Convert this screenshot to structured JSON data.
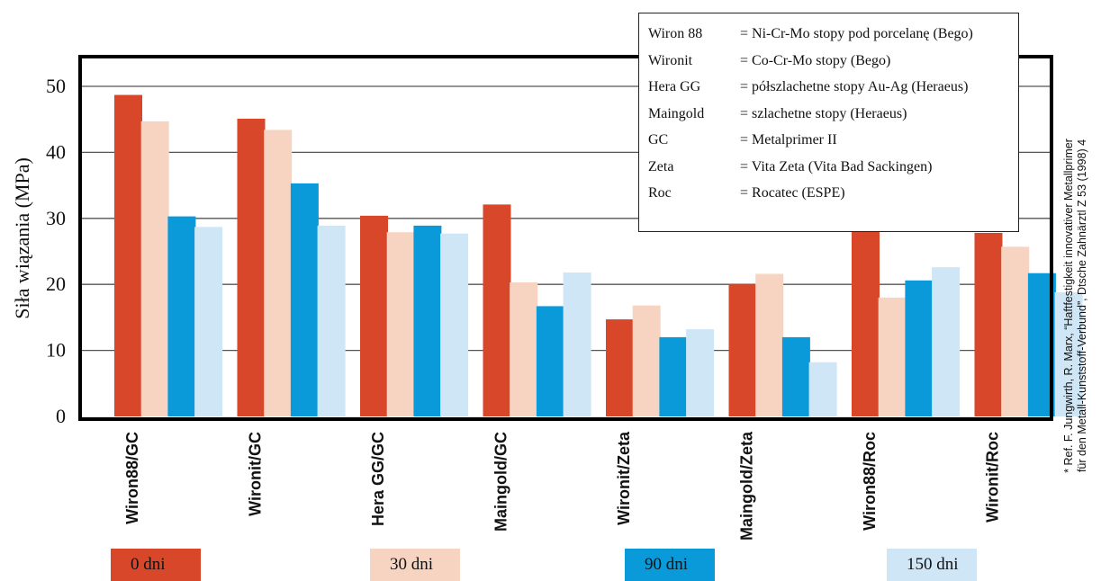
{
  "chart_data": {
    "type": "bar",
    "ylabel": "Siła wiązania (MPa)",
    "ylim": [
      0,
      54
    ],
    "yticks": [
      0,
      10,
      20,
      30,
      40,
      50
    ],
    "grid": true,
    "categories": [
      "Wiron88/GC",
      "Wironit/GC",
      "Hera GG/GC",
      "Maingold/GC",
      "Wironit/Zeta",
      "Maingold/Zeta",
      "Wiron88/Roc",
      "Wironit/Roc"
    ],
    "series": [
      {
        "name": "0 dni",
        "color": "#d9472b",
        "values": [
          48.7,
          45.1,
          30.4,
          32.1,
          14.7,
          20.0,
          28.1,
          27.8
        ]
      },
      {
        "name": "30 dni",
        "color": "#f7d4c2",
        "values": [
          44.7,
          43.4,
          27.9,
          20.3,
          16.8,
          21.6,
          18.0,
          25.7
        ]
      },
      {
        "name": "90 dni",
        "color": "#0b9ad9",
        "values": [
          30.3,
          35.3,
          28.9,
          16.7,
          12.0,
          12.0,
          20.6,
          21.7
        ]
      },
      {
        "name": "150 dni",
        "color": "#cfe6f6",
        "values": [
          28.7,
          28.9,
          27.7,
          21.8,
          13.2,
          8.2,
          22.6,
          18.8
        ]
      }
    ],
    "legend_placement": "bottom"
  },
  "legend_text": [
    {
      "key": "Wiron 88",
      "value": "= Ni-Cr-Mo stopy pod porcelanę (Bego)"
    },
    {
      "key": "Wironit",
      "value": "= Co-Cr-Mo stopy (Bego)"
    },
    {
      "key": "Hera GG",
      "value": "= półszlachetne stopy Au-Ag (Heraeus)"
    },
    {
      "key": "Maingold",
      "value": "= szlachetne stopy (Heraeus)"
    },
    {
      "key": "GC",
      "value": "= Metalprimer II"
    },
    {
      "key": "Zeta",
      "value": "= Vita Zeta (Vita Bad Sackingen)"
    },
    {
      "key": "Roc",
      "value": "= Rocatec (ESPE)"
    }
  ],
  "reference_note": {
    "line1": "* Ref. F. Jungwirth, R. Marx, “Haftfestigkeit innovativer Metallprimer",
    "line2": "für den Metall-Kunststoff-Verbund”, Dtsche Zahnärztl Z 53 (1998) 4"
  }
}
